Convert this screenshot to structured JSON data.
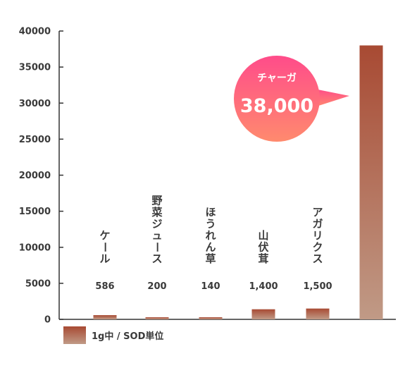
{
  "chart_data": {
    "type": "bar",
    "categories": [
      "ケール",
      "野菜ジュース",
      "ほうれん草",
      "山伏茸",
      "アガリクス",
      "チャーガ"
    ],
    "values": [
      586,
      200,
      140,
      1400,
      1500,
      38000
    ],
    "value_labels": [
      "586",
      "200",
      "140",
      "1,400",
      "1,500",
      ""
    ],
    "yticks": [
      0,
      5000,
      10000,
      15000,
      20000,
      25000,
      30000,
      35000,
      40000
    ],
    "ylim": [
      0,
      40000
    ],
    "legend": {
      "label": "1g中 / SOD単位",
      "placement": "bottom-left"
    },
    "callout": {
      "name": "チャーガ",
      "value": "38,000"
    },
    "colors": {
      "bar_top": "#a84a33",
      "bar_bottom": "#c09a86",
      "callout_top": "#ff4c8a",
      "callout_bottom": "#ff8a6e",
      "axis": "#333333"
    }
  }
}
